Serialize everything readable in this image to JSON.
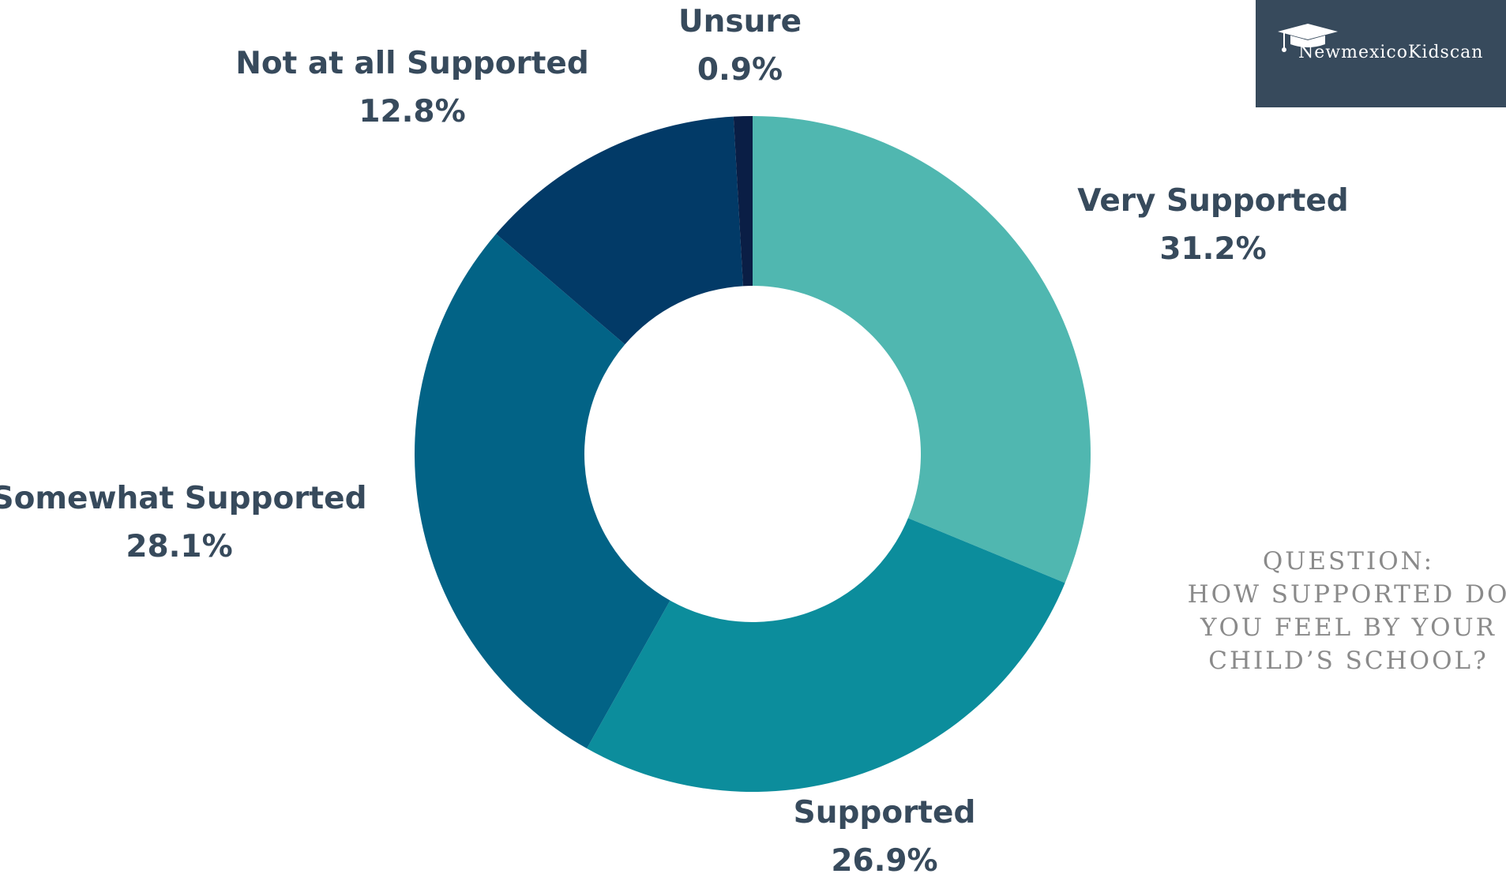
{
  "chart_data": {
    "type": "pie",
    "donut": true,
    "slices": [
      {
        "label": "Very Supported",
        "value": 31.2,
        "value_label": "31.2%",
        "color": "#50b7b0"
      },
      {
        "label": "Supported",
        "value": 26.9,
        "value_label": "26.9%",
        "color": "#0c8d9c"
      },
      {
        "label": "Somewhat Supported",
        "value": 28.1,
        "value_label": "28.1%",
        "color": "#026386"
      },
      {
        "label": "Not at all Supported",
        "value": 12.8,
        "value_label": "12.8%",
        "color": "#023a67"
      },
      {
        "label": "Unsure",
        "value": 0.9,
        "value_label": "0.9%",
        "color": "#0a1e45"
      }
    ]
  },
  "logo": {
    "text": "NewmexicoKidscan",
    "icon": "graduation-cap-icon"
  },
  "question": {
    "lines": [
      "QUESTION:",
      "HOW SUPPORTED DO",
      "YOU FEEL BY YOUR",
      "CHILD’S SCHOOL?"
    ]
  }
}
